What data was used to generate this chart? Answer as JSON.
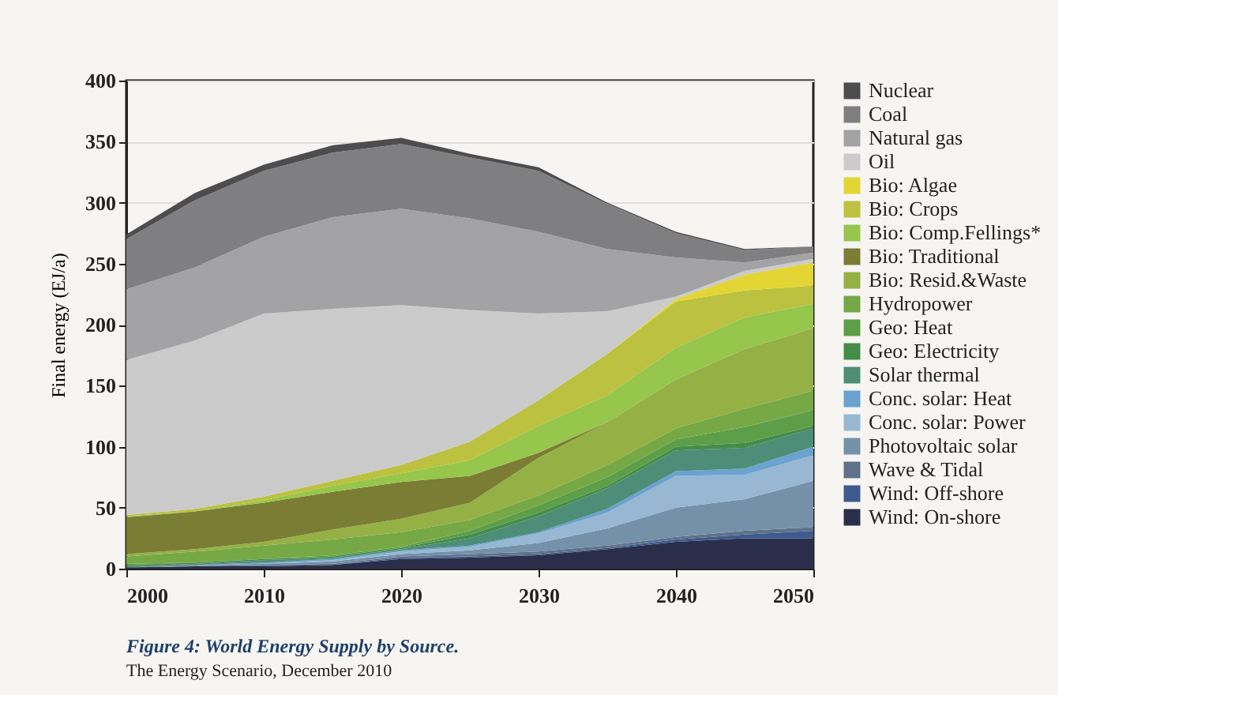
{
  "chart_data": {
    "type": "area",
    "stacked": true,
    "title": "Figure 4: World Energy Supply by Source.",
    "annotations": [
      "The Energy Scenario, December 2010"
    ],
    "ylabel": "Final energy (EJ/a)",
    "x": [
      2000,
      2005,
      2010,
      2015,
      2020,
      2025,
      2030,
      2035,
      2040,
      2045,
      2050
    ],
    "xlim": [
      2000,
      2050
    ],
    "xticks": [
      2000,
      2010,
      2020,
      2030,
      2040,
      2050
    ],
    "ylim": [
      0,
      400
    ],
    "yticks": [
      0,
      50,
      100,
      150,
      200,
      250,
      300,
      350,
      400
    ],
    "grid": "y",
    "legend": "right",
    "series": [
      {
        "name": "Wind: On-shore",
        "color": "#2b2e4a",
        "values": [
          1,
          2,
          2,
          3,
          8,
          9,
          11,
          16,
          22,
          25,
          25
        ]
      },
      {
        "name": "Wind: Off-shore",
        "color": "#3f5a8f",
        "values": [
          0,
          0,
          0,
          0,
          1,
          1,
          1,
          1,
          2,
          3,
          6
        ]
      },
      {
        "name": "Wave & Tidal",
        "color": "#5e728a",
        "values": [
          0,
          0,
          1,
          1,
          1,
          2,
          2,
          2,
          2,
          3,
          3
        ]
      },
      {
        "name": "Photovoltaic solar",
        "color": "#7591a9",
        "values": [
          0,
          1,
          1,
          2,
          2,
          3,
          7,
          14,
          24,
          26,
          38
        ]
      },
      {
        "name": "Conc. solar: Power",
        "color": "#97b7d3",
        "values": [
          0,
          0,
          0,
          1,
          2,
          3,
          8,
          13,
          26,
          20,
          21
        ]
      },
      {
        "name": "Conc. solar: Heat",
        "color": "#6aa2d0",
        "values": [
          0,
          0,
          1,
          1,
          1,
          1,
          1,
          3,
          4,
          5,
          7
        ]
      },
      {
        "name": "Solar thermal",
        "color": "#4e8d78",
        "values": [
          1,
          1,
          2,
          1,
          1,
          6,
          13,
          17,
          17,
          17,
          15
        ]
      },
      {
        "name": "Geo: Electricity",
        "color": "#458c4a",
        "values": [
          1,
          1,
          1,
          1,
          1,
          3,
          3,
          2,
          3,
          4,
          2
        ]
      },
      {
        "name": "Geo: Heat",
        "color": "#5d9e48",
        "values": [
          1,
          0,
          0,
          1,
          1,
          3,
          6,
          7,
          6,
          13,
          13
        ]
      },
      {
        "name": "Hydropower",
        "color": "#76a946",
        "values": [
          6,
          9,
          11,
          13,
          12,
          9,
          8,
          10,
          9,
          15,
          16
        ]
      },
      {
        "name": "Bio: Resid.&Waste",
        "color": "#95b045",
        "values": [
          2,
          2,
          3,
          8,
          11,
          14,
          31,
          35,
          40,
          49,
          51
        ]
      },
      {
        "name": "Bio: Traditional",
        "color": "#7a7d33",
        "values": [
          30,
          31,
          32,
          31,
          30,
          22,
          4,
          0,
          0,
          0,
          0
        ]
      },
      {
        "name": "Bio: Comp.Fellings*",
        "color": "#97c64c",
        "values": [
          1,
          0,
          2,
          5,
          7,
          13,
          22,
          22,
          26,
          26,
          20
        ]
      },
      {
        "name": "Bio: Crops",
        "color": "#bcc23f",
        "values": [
          1,
          2,
          3,
          4,
          7,
          15,
          21,
          34,
          38,
          22,
          15
        ]
      },
      {
        "name": "Bio: Algae",
        "color": "#e3d634",
        "values": [
          0,
          0,
          0,
          0,
          0,
          0,
          0,
          0,
          2,
          13,
          19
        ]
      },
      {
        "name": "Oil",
        "color": "#cbcbcb",
        "values": [
          127,
          138,
          150,
          141,
          131,
          108,
          71,
          35,
          2,
          3,
          3
        ]
      },
      {
        "name": "Natural gas",
        "color": "#a3a3a5",
        "values": [
          58,
          60,
          63,
          75,
          79,
          75,
          67,
          51,
          32,
          7,
          5
        ]
      },
      {
        "name": "Coal",
        "color": "#7f7f81",
        "values": [
          41,
          55,
          54,
          53,
          53,
          50,
          50,
          37,
          20,
          10,
          5
        ]
      },
      {
        "name": "Nuclear",
        "color": "#4d4d4f",
        "values": [
          4,
          6,
          5,
          6,
          5,
          3,
          3,
          1,
          1,
          1,
          0
        ]
      }
    ]
  }
}
